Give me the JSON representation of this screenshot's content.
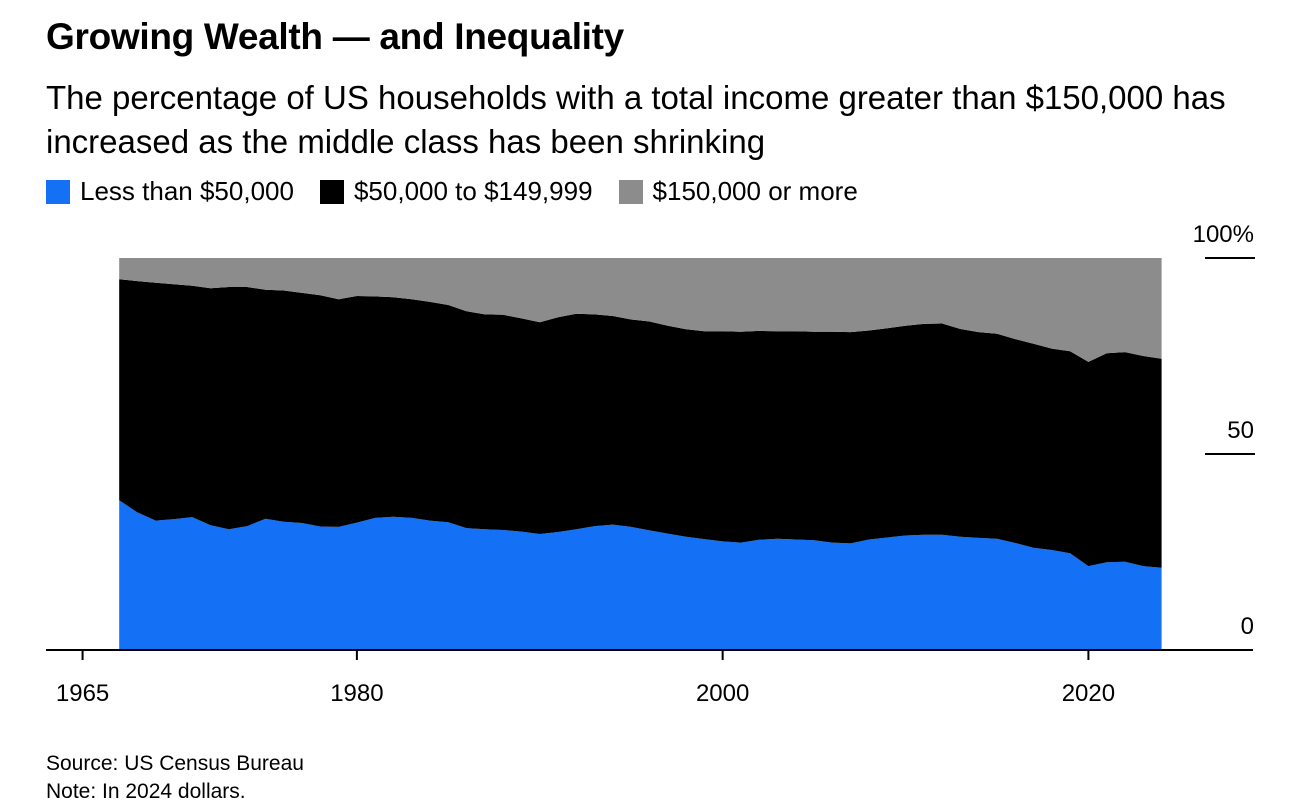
{
  "title": "Growing Wealth — and Inequality",
  "subtitle": "The percentage of US households with a total income greater than $150,000 has increased as the middle class has been shrinking",
  "legend": [
    {
      "label": "Less than $50,000",
      "color": "#1470f5"
    },
    {
      "label": "$50,000 to $149,999",
      "color": "#000000"
    },
    {
      "label": "$150,000 or more",
      "color": "#8c8c8c"
    }
  ],
  "source": "Source: US Census Bureau",
  "note": "Note: In 2024 dollars.",
  "chart_data": {
    "type": "area",
    "stacked": true,
    "x_ticks": [
      "1965",
      "1980",
      "2000",
      "2020"
    ],
    "y_ticks": [
      "0",
      "50",
      "100%"
    ],
    "y_axis_position": "right",
    "ylim": [
      0,
      100
    ],
    "xlim": [
      1963,
      2029
    ],
    "x": [
      1967,
      1968,
      1969,
      1970,
      1971,
      1972,
      1973,
      1974,
      1975,
      1976,
      1977,
      1978,
      1979,
      1980,
      1981,
      1982,
      1983,
      1984,
      1985,
      1986,
      1987,
      1988,
      1989,
      1990,
      1991,
      1992,
      1993,
      1994,
      1995,
      1996,
      1997,
      1998,
      1999,
      2000,
      2001,
      2002,
      2003,
      2004,
      2005,
      2006,
      2007,
      2008,
      2009,
      2010,
      2011,
      2012,
      2013,
      2014,
      2015,
      2016,
      2017,
      2018,
      2019,
      2020,
      2021,
      2022,
      2023,
      2024
    ],
    "series": [
      {
        "name": "Less than $50,000",
        "color": "#1470f5",
        "values": [
          38.2,
          35.1,
          33.0,
          33.4,
          33.9,
          31.8,
          30.8,
          31.6,
          33.5,
          32.7,
          32.4,
          31.5,
          31.4,
          32.5,
          33.7,
          34.0,
          33.7,
          33.0,
          32.6,
          31.1,
          30.8,
          30.6,
          30.2,
          29.6,
          30.1,
          30.8,
          31.6,
          32.0,
          31.4,
          30.5,
          29.7,
          28.9,
          28.3,
          27.7,
          27.4,
          28.1,
          28.4,
          28.2,
          28.0,
          27.4,
          27.2,
          28.2,
          28.7,
          29.2,
          29.4,
          29.4,
          28.9,
          28.6,
          28.4,
          27.3,
          26.1,
          25.5,
          24.7,
          21.4,
          22.4,
          22.5,
          21.4,
          21.0
        ]
      },
      {
        "name": "$50,000 to $149,999",
        "color": "#000000",
        "values": [
          56.4,
          59.0,
          60.7,
          59.9,
          59.0,
          60.5,
          61.8,
          61.0,
          58.4,
          59.0,
          58.7,
          59.0,
          58.1,
          57.8,
          56.5,
          56.0,
          55.8,
          55.8,
          55.4,
          55.3,
          54.8,
          54.9,
          54.4,
          54.0,
          54.8,
          55.0,
          54.0,
          53.2,
          52.9,
          53.3,
          53.0,
          52.9,
          53.0,
          53.6,
          53.8,
          53.3,
          52.9,
          53.1,
          53.2,
          53.8,
          53.9,
          53.3,
          53.4,
          53.5,
          53.8,
          53.9,
          53.0,
          52.5,
          52.3,
          52.0,
          52.0,
          51.4,
          51.5,
          52.1,
          53.3,
          53.5,
          53.6,
          53.3
        ]
      },
      {
        "name": "$150,000 or more",
        "color": "#8c8c8c",
        "values": [
          5.4,
          5.9,
          6.3,
          6.7,
          7.1,
          7.7,
          7.4,
          7.4,
          8.1,
          8.3,
          8.9,
          9.5,
          10.5,
          9.7,
          9.8,
          10.0,
          10.5,
          11.2,
          12.0,
          13.6,
          14.4,
          14.5,
          15.4,
          16.4,
          15.1,
          14.2,
          14.4,
          14.8,
          15.7,
          16.2,
          17.3,
          18.2,
          18.7,
          18.7,
          18.8,
          18.6,
          18.7,
          18.7,
          18.8,
          18.8,
          18.9,
          18.5,
          17.9,
          17.3,
          16.8,
          16.7,
          18.1,
          18.9,
          19.3,
          20.7,
          21.9,
          23.1,
          23.8,
          26.5,
          24.3,
          24.0,
          25.0,
          25.7
        ]
      }
    ]
  }
}
